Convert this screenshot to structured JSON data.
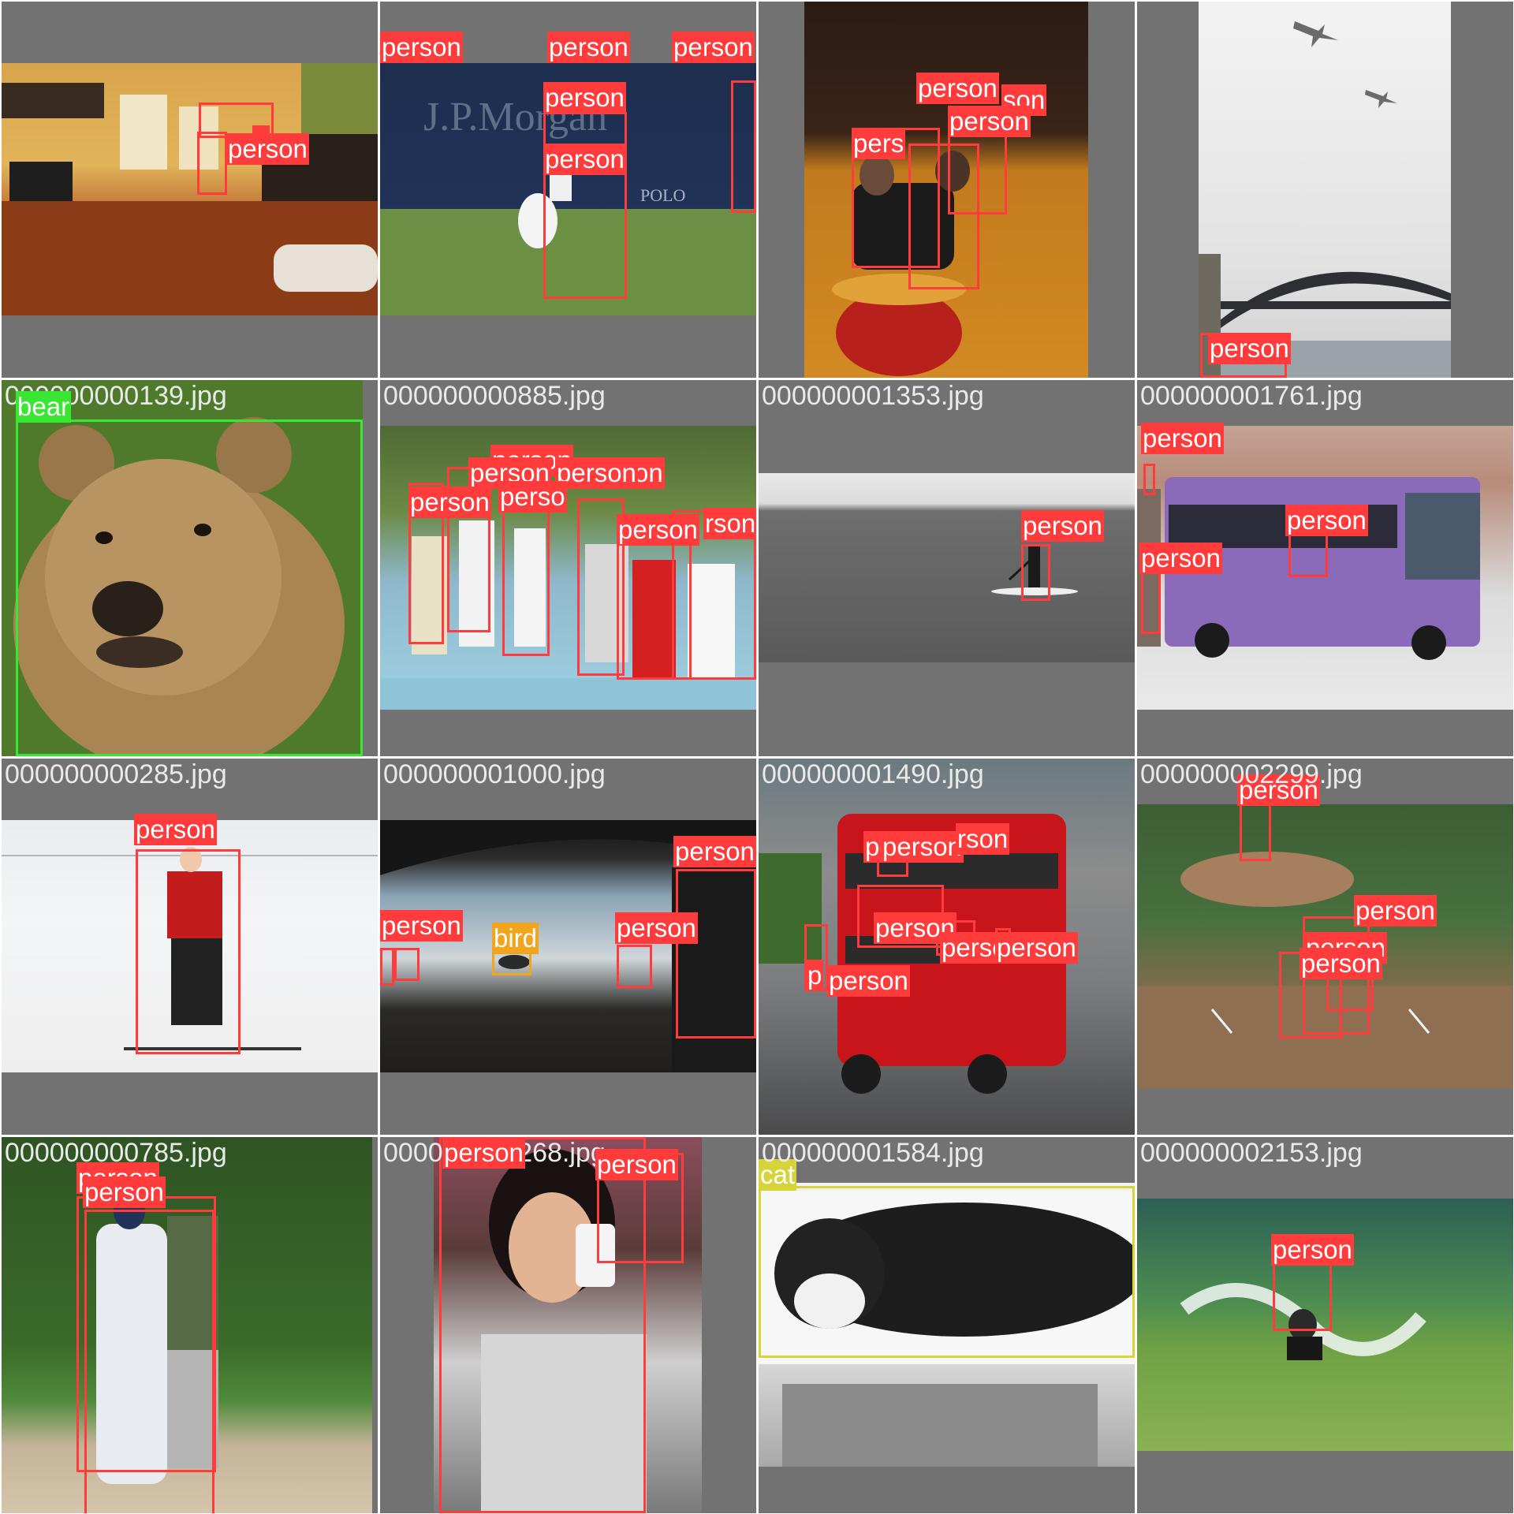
{
  "colors": {
    "tile_background": "#727272",
    "person": "#ff3b3b",
    "bear": "#39e633",
    "bird": "#f2a51c",
    "cat": "#d6d43a",
    "filename_text": "#eaeaea"
  },
  "tiles": [
    {
      "name": "living-room",
      "filename": "",
      "labels": [
        "person",
        "n"
      ]
    },
    {
      "name": "tennis",
      "filename": "",
      "labels": [
        "person",
        "person",
        "person",
        "person",
        "person"
      ]
    },
    {
      "name": "kids-ride",
      "filename": "",
      "labels": [
        "person",
        "son",
        "person",
        "pers"
      ]
    },
    {
      "name": "harbour-bridge",
      "filename": "",
      "labels": [
        "person"
      ]
    },
    {
      "name": "bear",
      "filename": "000000000139.jpg",
      "labels": [
        "bear"
      ]
    },
    {
      "name": "kids-group",
      "filename": "000000000885.jpg",
      "labels": [
        "person",
        "person",
        "person",
        "perso",
        "person",
        "person",
        "rson",
        "on"
      ]
    },
    {
      "name": "paddleboard",
      "filename": "000000001353.jpg",
      "labels": [
        "person"
      ]
    },
    {
      "name": "purple-bus",
      "filename": "000000001761.jpg",
      "labels": [
        "person",
        "person",
        "person"
      ]
    },
    {
      "name": "skier",
      "filename": "000000000285.jpg",
      "labels": [
        "person"
      ]
    },
    {
      "name": "bridge-bird",
      "filename": "000000001000.jpg",
      "labels": [
        "person",
        "person",
        "bird",
        "person"
      ]
    },
    {
      "name": "red-bus",
      "filename": "000000001490.jpg",
      "labels": [
        "pe",
        "person",
        "rson",
        "person",
        "person",
        "person",
        "person",
        "p"
      ]
    },
    {
      "name": "baseball-field",
      "filename": "000000002299.jpg",
      "labels": [
        "person",
        "person",
        "person",
        "person"
      ]
    },
    {
      "name": "baseball-runners",
      "filename": "000000000785.jpg",
      "labels": [
        "person",
        "person"
      ]
    },
    {
      "name": "phone-girl",
      "filename": "000000001268.jpg",
      "labels": [
        "person",
        "person"
      ]
    },
    {
      "name": "cat-laptop",
      "filename": "000000001584.jpg",
      "labels": [
        "cat"
      ]
    },
    {
      "name": "surf",
      "filename": "000000002153.jpg",
      "labels": [
        "person"
      ]
    }
  ]
}
